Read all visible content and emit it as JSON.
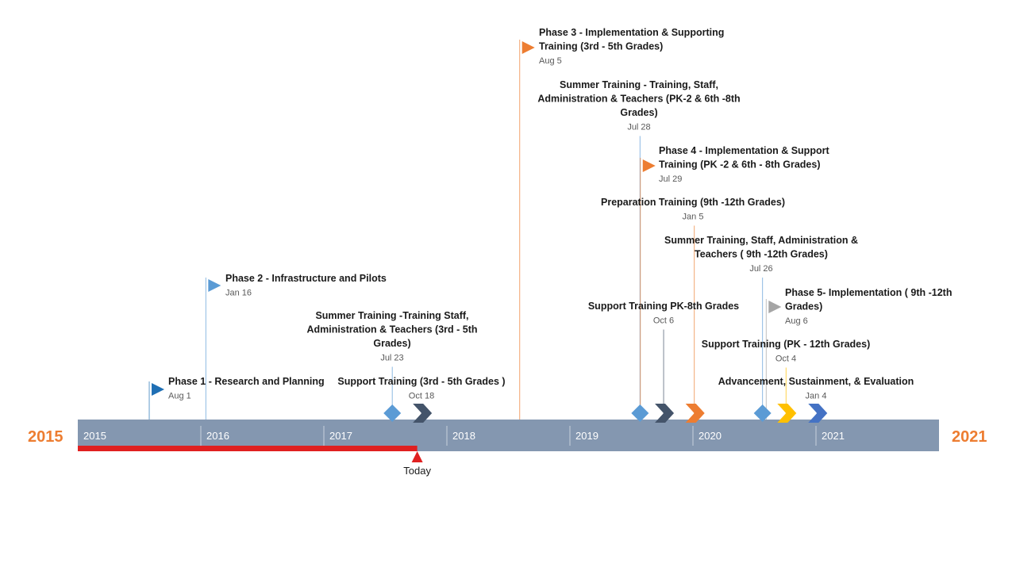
{
  "timeline": {
    "start_label": "2015",
    "end_label": "2021",
    "years": [
      "2015",
      "2016",
      "2017",
      "2018",
      "2019",
      "2020",
      "2021"
    ],
    "bar_color": "#8497b0",
    "today": {
      "label": "Today",
      "date": "2017-10-05",
      "color": "#e02020"
    },
    "milestones": [
      {
        "date": "2015-08-01",
        "date_label": "Aug 1",
        "title": [
          "Phase 1 - Research and Planning"
        ],
        "shape": "flag",
        "color": "#1f6fb4",
        "label_align": "left"
      },
      {
        "date": "2016-01-16",
        "date_label": "Jan 16",
        "title": [
          "Phase 2 - Infrastructure and Pilots"
        ],
        "shape": "flag",
        "color": "#5b9bd5",
        "label_align": "left"
      },
      {
        "date": "2017-07-23",
        "date_label": "Jul 23",
        "title": [
          "Summer Training -Training Staff,",
          "Administration & Teachers (3rd - 5th",
          "Grades)"
        ],
        "shape": "diamond",
        "color": "#5b9bd5",
        "label_align": "center"
      },
      {
        "date": "2017-10-18",
        "date_label": "Oct 18",
        "title": [
          "Support Training (3rd - 5th Grades )"
        ],
        "shape": "chevron",
        "color": "#44546a",
        "label_align": "center"
      },
      {
        "date": "2018-08-05",
        "date_label": "Aug 5",
        "title": [
          "Phase 3 - Implementation & Supporting",
          "Training  (3rd - 5th Grades)"
        ],
        "shape": "flag",
        "color": "#ed7d31",
        "label_align": "left"
      },
      {
        "date": "2019-07-28",
        "date_label": "Jul 28",
        "title": [
          "Summer Training - Training, Staff,",
          "Administration & Teachers (PK-2 & 6th -8th",
          "Grades)"
        ],
        "shape": "diamond",
        "color": "#5b9bd5",
        "label_align": "center"
      },
      {
        "date": "2019-07-29",
        "date_label": "Jul 29",
        "title": [
          "Phase 4 - Implementation & Support",
          "Training (PK -2 & 6th - 8th Grades)"
        ],
        "shape": "flag",
        "color": "#ed7d31",
        "label_align": "left"
      },
      {
        "date": "2019-10-06",
        "date_label": "Oct 6",
        "title": [
          "Support Training PK-8th Grades"
        ],
        "shape": "chevron",
        "color": "#44546a",
        "label_align": "center"
      },
      {
        "date": "2020-01-05",
        "date_label": "Jan 5",
        "title": [
          "Preparation Training (9th -12th Grades)"
        ],
        "shape": "chevron",
        "color": "#ed7d31",
        "label_align": "center"
      },
      {
        "date": "2020-07-26",
        "date_label": "Jul 26",
        "title": [
          "Summer Training, Staff, Administration &",
          "Teachers ( 9th -12th Grades)"
        ],
        "shape": "diamond",
        "color": "#5b9bd5",
        "label_align": "center"
      },
      {
        "date": "2020-08-06",
        "date_label": "Aug 6",
        "title": [
          "Phase 5- Implementation ( 9th -12th",
          "Grades)"
        ],
        "shape": "flag",
        "color": "#a5a5a5",
        "label_align": "left"
      },
      {
        "date": "2020-10-04",
        "date_label": "Oct 4",
        "title": [
          "Support Training (PK -  12th Grades)"
        ],
        "shape": "chevron",
        "color": "#ffc000",
        "label_align": "center"
      },
      {
        "date": "2021-01-04",
        "date_label": "Jan 4",
        "title": [
          "Advancement, Sustainment, & Evaluation"
        ],
        "shape": "chevron",
        "color": "#4472c4",
        "label_align": "center"
      }
    ]
  }
}
